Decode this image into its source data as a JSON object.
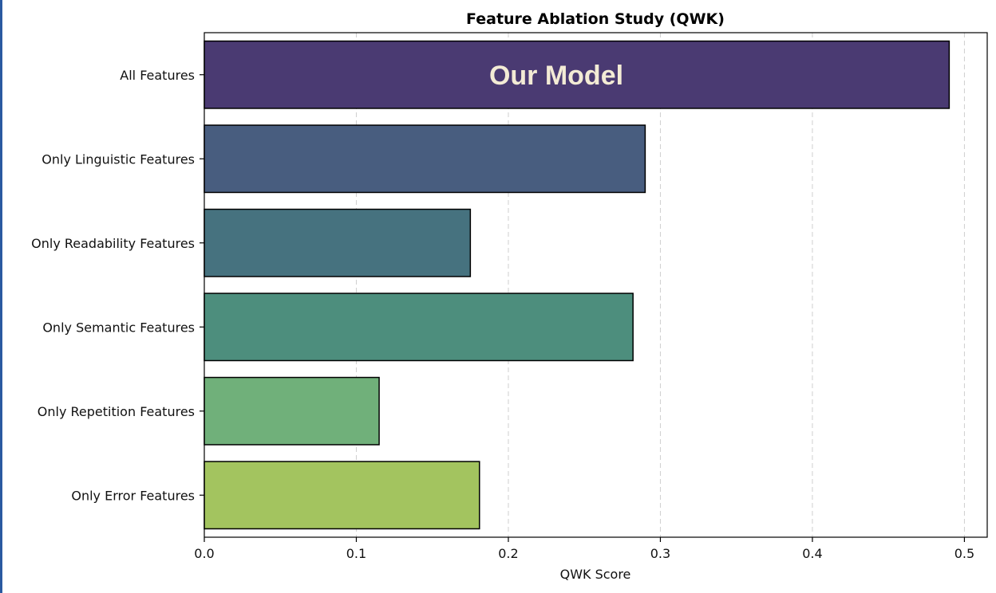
{
  "chart_data": {
    "type": "bar",
    "orientation": "horizontal",
    "title": "Feature Ablation Study (QWK)",
    "xlabel": "QWK Score",
    "ylabel": "",
    "xlim": [
      0.0,
      0.515
    ],
    "xticks": [
      "0.0",
      "0.1",
      "0.2",
      "0.3",
      "0.4",
      "0.5"
    ],
    "grid": "x-dashed",
    "categories": [
      "All Features",
      "Only Linguistic Features",
      "Only Readability Features",
      "Only Semantic Features",
      "Only Repetition Features",
      "Only Error Features"
    ],
    "values": [
      0.49,
      0.29,
      0.175,
      0.282,
      0.115,
      0.181
    ],
    "colors": [
      "#4a3a72",
      "#485d7f",
      "#46727f",
      "#4d8e7d",
      "#70b07a",
      "#a3c45f"
    ],
    "annotation": "Our Model"
  }
}
